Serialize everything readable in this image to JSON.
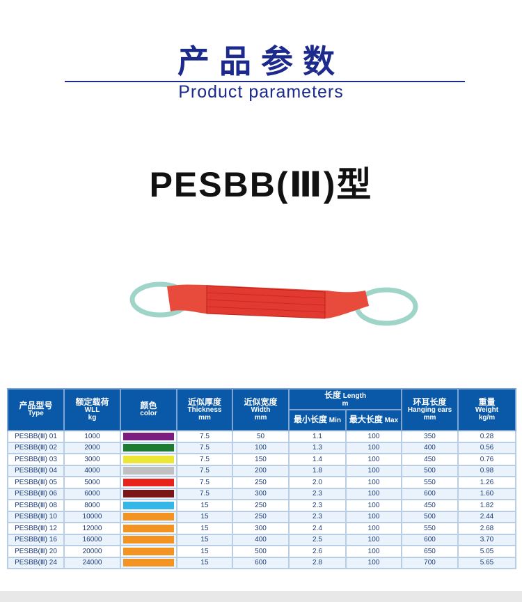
{
  "header": {
    "title_cn": "产品参数",
    "title_en": "Product parameters"
  },
  "model": "PESBB(Ⅲ)型",
  "table": {
    "headers": {
      "type": {
        "cn": "产品型号",
        "en": "Type"
      },
      "wll": {
        "cn": "额定载荷",
        "en": "WLL",
        "unit": "kg"
      },
      "color": {
        "cn": "颜色",
        "en": "color"
      },
      "thickness": {
        "cn": "近似厚度",
        "en": "Thickness",
        "unit": "mm"
      },
      "width": {
        "cn": "近似宽度",
        "en": "Width",
        "unit": "mm"
      },
      "length": {
        "cn": "长度",
        "en": "Length",
        "unit": "m"
      },
      "min": {
        "cn": "最小长度",
        "en": "Min"
      },
      "max": {
        "cn": "最大长度",
        "en": "Max"
      },
      "ears": {
        "cn": "环耳长度",
        "en": "Hanging ears",
        "unit": "mm"
      },
      "weight": {
        "cn": "重量",
        "en": "Weight",
        "unit": "kg/m"
      }
    },
    "rows": [
      [
        "PESBB(Ⅲ) 01",
        "1000",
        "#7b1c7e",
        "7.5",
        "50",
        "1.1",
        "100",
        "350",
        "0.28"
      ],
      [
        "PESBB(Ⅲ) 02",
        "2000",
        "#1f7a32",
        "7.5",
        "100",
        "1.3",
        "100",
        "400",
        "0.56"
      ],
      [
        "PESBB(Ⅲ) 03",
        "3000",
        "#ece637",
        "7.5",
        "150",
        "1.4",
        "100",
        "450",
        "0.76"
      ],
      [
        "PESBB(Ⅲ) 04",
        "4000",
        "#c0c0c0",
        "7.5",
        "200",
        "1.8",
        "100",
        "500",
        "0.98"
      ],
      [
        "PESBB(Ⅲ) 05",
        "5000",
        "#e8231c",
        "7.5",
        "250",
        "2.0",
        "100",
        "550",
        "1.26"
      ],
      [
        "PESBB(Ⅲ) 06",
        "6000",
        "#7a1616",
        "7.5",
        "300",
        "2.3",
        "100",
        "600",
        "1.60"
      ],
      [
        "PESBB(Ⅲ) 08",
        "8000",
        "#35b6e8",
        "15",
        "250",
        "2.3",
        "100",
        "450",
        "1.82"
      ],
      [
        "PESBB(Ⅲ) 10",
        "10000",
        "#f39321",
        "15",
        "250",
        "2.3",
        "100",
        "500",
        "2.44"
      ],
      [
        "PESBB(Ⅲ) 12",
        "12000",
        "#f39321",
        "15",
        "300",
        "2.4",
        "100",
        "550",
        "2.68"
      ],
      [
        "PESBB(Ⅲ) 16",
        "16000",
        "#f39321",
        "15",
        "400",
        "2.5",
        "100",
        "600",
        "3.70"
      ],
      [
        "PESBB(Ⅲ) 20",
        "20000",
        "#f39321",
        "15",
        "500",
        "2.6",
        "100",
        "650",
        "5.05"
      ],
      [
        "PESBB(Ⅲ) 24",
        "24000",
        "#f39321",
        "15",
        "600",
        "2.8",
        "100",
        "700",
        "5.65"
      ]
    ]
  }
}
